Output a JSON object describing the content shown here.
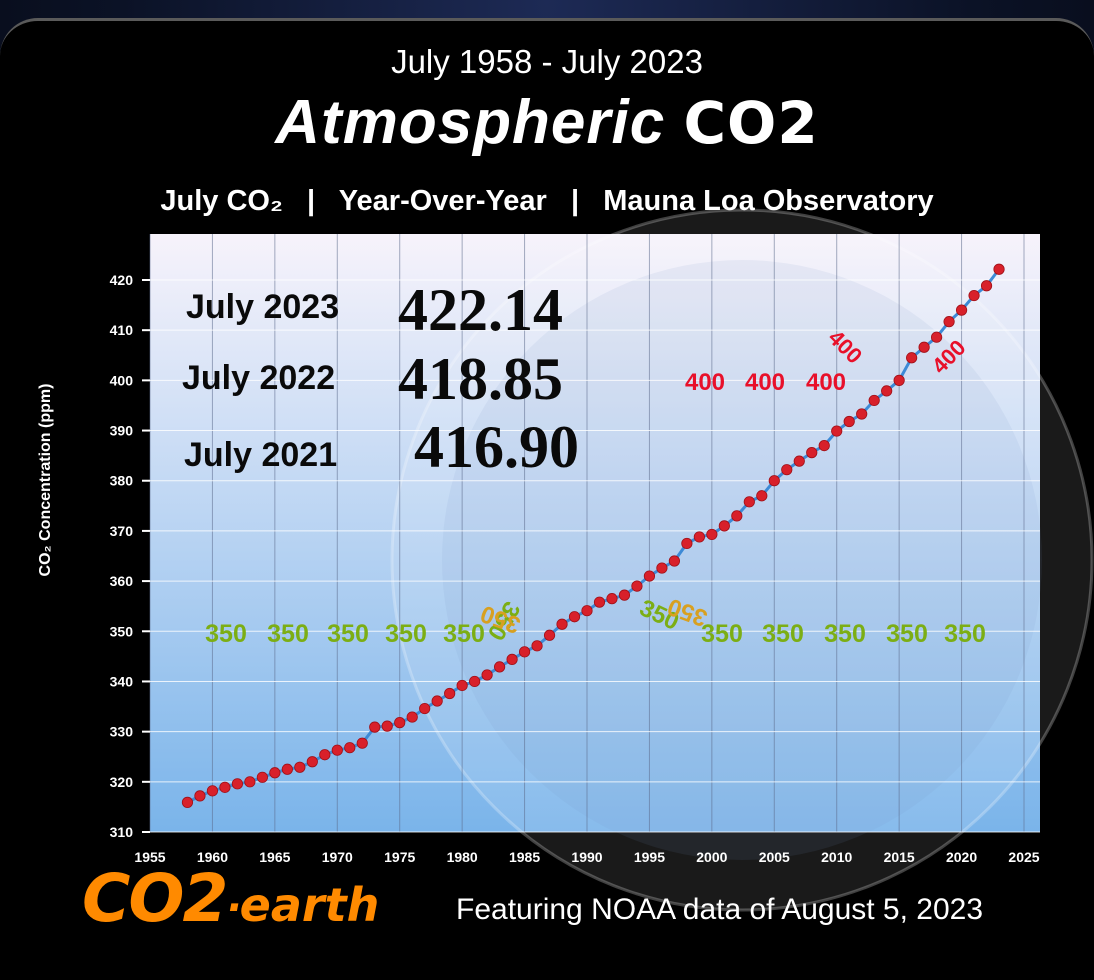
{
  "header": {
    "period": "July 1958 - July 2023",
    "title_main": "Atmospheric ",
    "title_co2": "CO2",
    "subtitle": "July CO₂   |   Year-Over-Year   |   Mauna Loa Observatory"
  },
  "footer": {
    "logo_co2": "CO2",
    "logo_dot": "·",
    "logo_earth": "earth",
    "note": "Featuring NOAA data of August 5, 2023"
  },
  "colors": {
    "marker": "#d8202a",
    "line": "#3d8ad6",
    "plot_top": "#f7f3fb",
    "plot_bottom": "#7ab4ea",
    "annotation_350": "#7cae14",
    "annotation_400": "#e8102a"
  },
  "chart_data": {
    "type": "line",
    "title": "Atmospheric CO2",
    "ylabel": "CO₂ Concentration (ppm)",
    "xlabel": "",
    "xlim": [
      1955,
      2025
    ],
    "ylim": [
      310,
      425
    ],
    "x_ticks": [
      1955,
      1960,
      1965,
      1970,
      1975,
      1980,
      1985,
      1990,
      1995,
      2000,
      2005,
      2010,
      2015,
      2020,
      2025
    ],
    "y_ticks": [
      310,
      320,
      330,
      340,
      350,
      360,
      370,
      380,
      390,
      400,
      410,
      420
    ],
    "grid": true,
    "series": [
      {
        "name": "",
        "x": [
          1958,
          1959,
          1960,
          1961,
          1962,
          1963,
          1964,
          1965,
          1966,
          1967,
          1968,
          1969,
          1970,
          1971,
          1972,
          1973,
          1974,
          1975,
          1976,
          1977,
          1978,
          1979,
          1980,
          1981,
          1982,
          1983,
          1984,
          1985,
          1986,
          1987,
          1988,
          1989,
          1990,
          1991,
          1992,
          1993,
          1994,
          1995,
          1996,
          1997,
          1998,
          1999,
          2000,
          2001,
          2002,
          2003,
          2004,
          2005,
          2006,
          2007,
          2008,
          2009,
          2010,
          2011,
          2012,
          2013,
          2014,
          2015,
          2016,
          2017,
          2018,
          2019,
          2020,
          2021,
          2022,
          2023
        ],
        "values": [
          315.9,
          317.2,
          318.2,
          318.9,
          319.6,
          320.0,
          320.9,
          321.8,
          322.5,
          322.9,
          324.0,
          325.4,
          326.3,
          326.8,
          327.7,
          330.9,
          331.1,
          331.8,
          332.9,
          334.6,
          336.1,
          337.6,
          339.2,
          340.0,
          341.3,
          342.9,
          344.4,
          345.9,
          347.1,
          349.2,
          351.4,
          352.9,
          354.1,
          355.8,
          356.5,
          357.2,
          359.0,
          361.0,
          362.6,
          364.0,
          367.5,
          368.8,
          369.3,
          371.0,
          373.0,
          375.8,
          377.0,
          380.0,
          382.2,
          383.9,
          385.6,
          387.0,
          389.9,
          391.8,
          393.3,
          396.0,
          397.9,
          400.0,
          404.5,
          406.6,
          408.6,
          411.7,
          414.0,
          416.9,
          418.85,
          422.14
        ]
      }
    ],
    "highlights": [
      {
        "label": "July 2023",
        "value": "422.14"
      },
      {
        "label": "July 2022",
        "value": "418.85"
      },
      {
        "label": "July 2021",
        "value": "416.90"
      }
    ],
    "annotations_350_row": [
      "350",
      "350",
      "350",
      "350",
      "350"
    ],
    "annotations_350_right": [
      "350",
      "350",
      "350",
      "350",
      "350"
    ],
    "annotations_350_tilted": [
      "350",
      "350",
      "350",
      "350"
    ],
    "annotations_400_row": [
      "400",
      "400",
      "400"
    ],
    "annotations_400_tilted": [
      "400",
      "400"
    ]
  }
}
